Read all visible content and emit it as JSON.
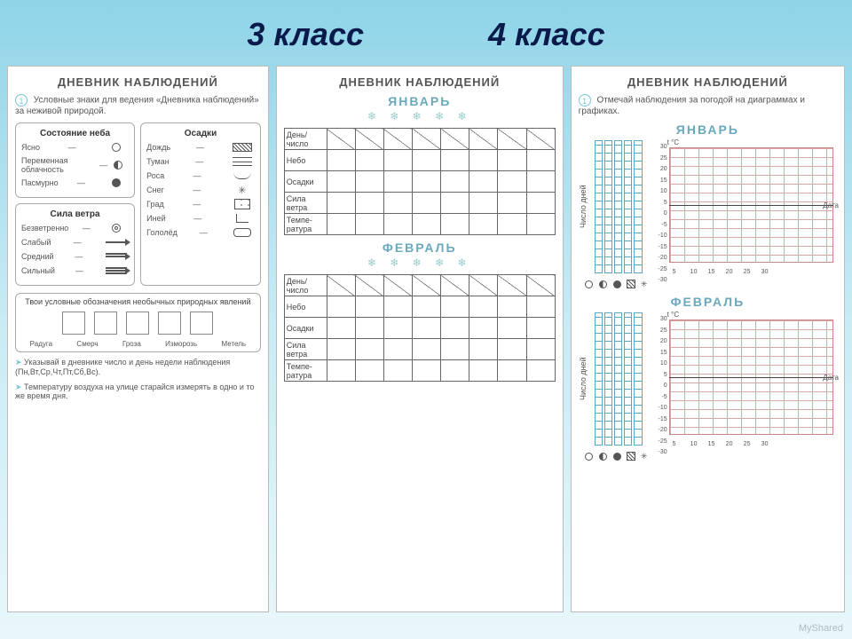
{
  "header": {
    "left": "3 класс",
    "right": "4 класс"
  },
  "panel1": {
    "title": "ДНЕВНИК НАБЛЮДЕНИЙ",
    "marker": "1",
    "intro": "Условные знаки для ведения «Дневника наблюдений» за неживой природой.",
    "sky": {
      "title": "Состояние неба",
      "items": [
        "Ясно",
        "Переменная облачность",
        "Пасмурно"
      ]
    },
    "wind": {
      "title": "Сила ветра",
      "items": [
        "Безветренно",
        "Слабый",
        "Средний",
        "Сильный"
      ]
    },
    "precip": {
      "title": "Осадки",
      "items": [
        "Дождь",
        "Туман",
        "Роса",
        "Снег",
        "Град",
        "Иней",
        "Гололёд"
      ]
    },
    "own_title": "Твои условные обозначения необычных природных явлений",
    "own_labels": [
      "Радуга",
      "Смерч",
      "Гроза",
      "Изморозь",
      "Метель"
    ],
    "note1": "Указывай в дневнике число и день недели наблюдения (Пн,Вт,Ср,Чт,Пт,Сб,Вс).",
    "note2": "Температуру воздуха на улице старайся измерять в одно и то же время дня."
  },
  "panel2": {
    "title": "ДНЕВНИК НАБЛЮДЕНИЙ",
    "months": [
      "ЯНВАРЬ",
      "ФЕВРАЛЬ"
    ],
    "rows": [
      "День/ число",
      "Небо",
      "Осадки",
      "Сила ветра",
      "Темпе- ратура"
    ],
    "cols": 8
  },
  "panel3": {
    "title": "ДНЕВНИК НАБЛЮДЕНИЙ",
    "marker": "1",
    "intro": "Отмечай наблюдения за погодой на диаграммах и графиках.",
    "months": [
      "ЯНВАРЬ",
      "ФЕВРАЛЬ"
    ],
    "bar_ylabel": "Число дней",
    "temp_yunit": "t °C",
    "temp_xunit": "Дата",
    "temp_yticks": [
      30,
      25,
      20,
      15,
      10,
      5,
      0,
      -5,
      -10,
      -15,
      -20,
      -25,
      -30
    ],
    "temp_xticks": [
      5,
      10,
      15,
      20,
      25,
      30
    ],
    "bar_color": "#5aa6c4",
    "grid_color": "#d9a6a6"
  },
  "watermark": "MyShared"
}
